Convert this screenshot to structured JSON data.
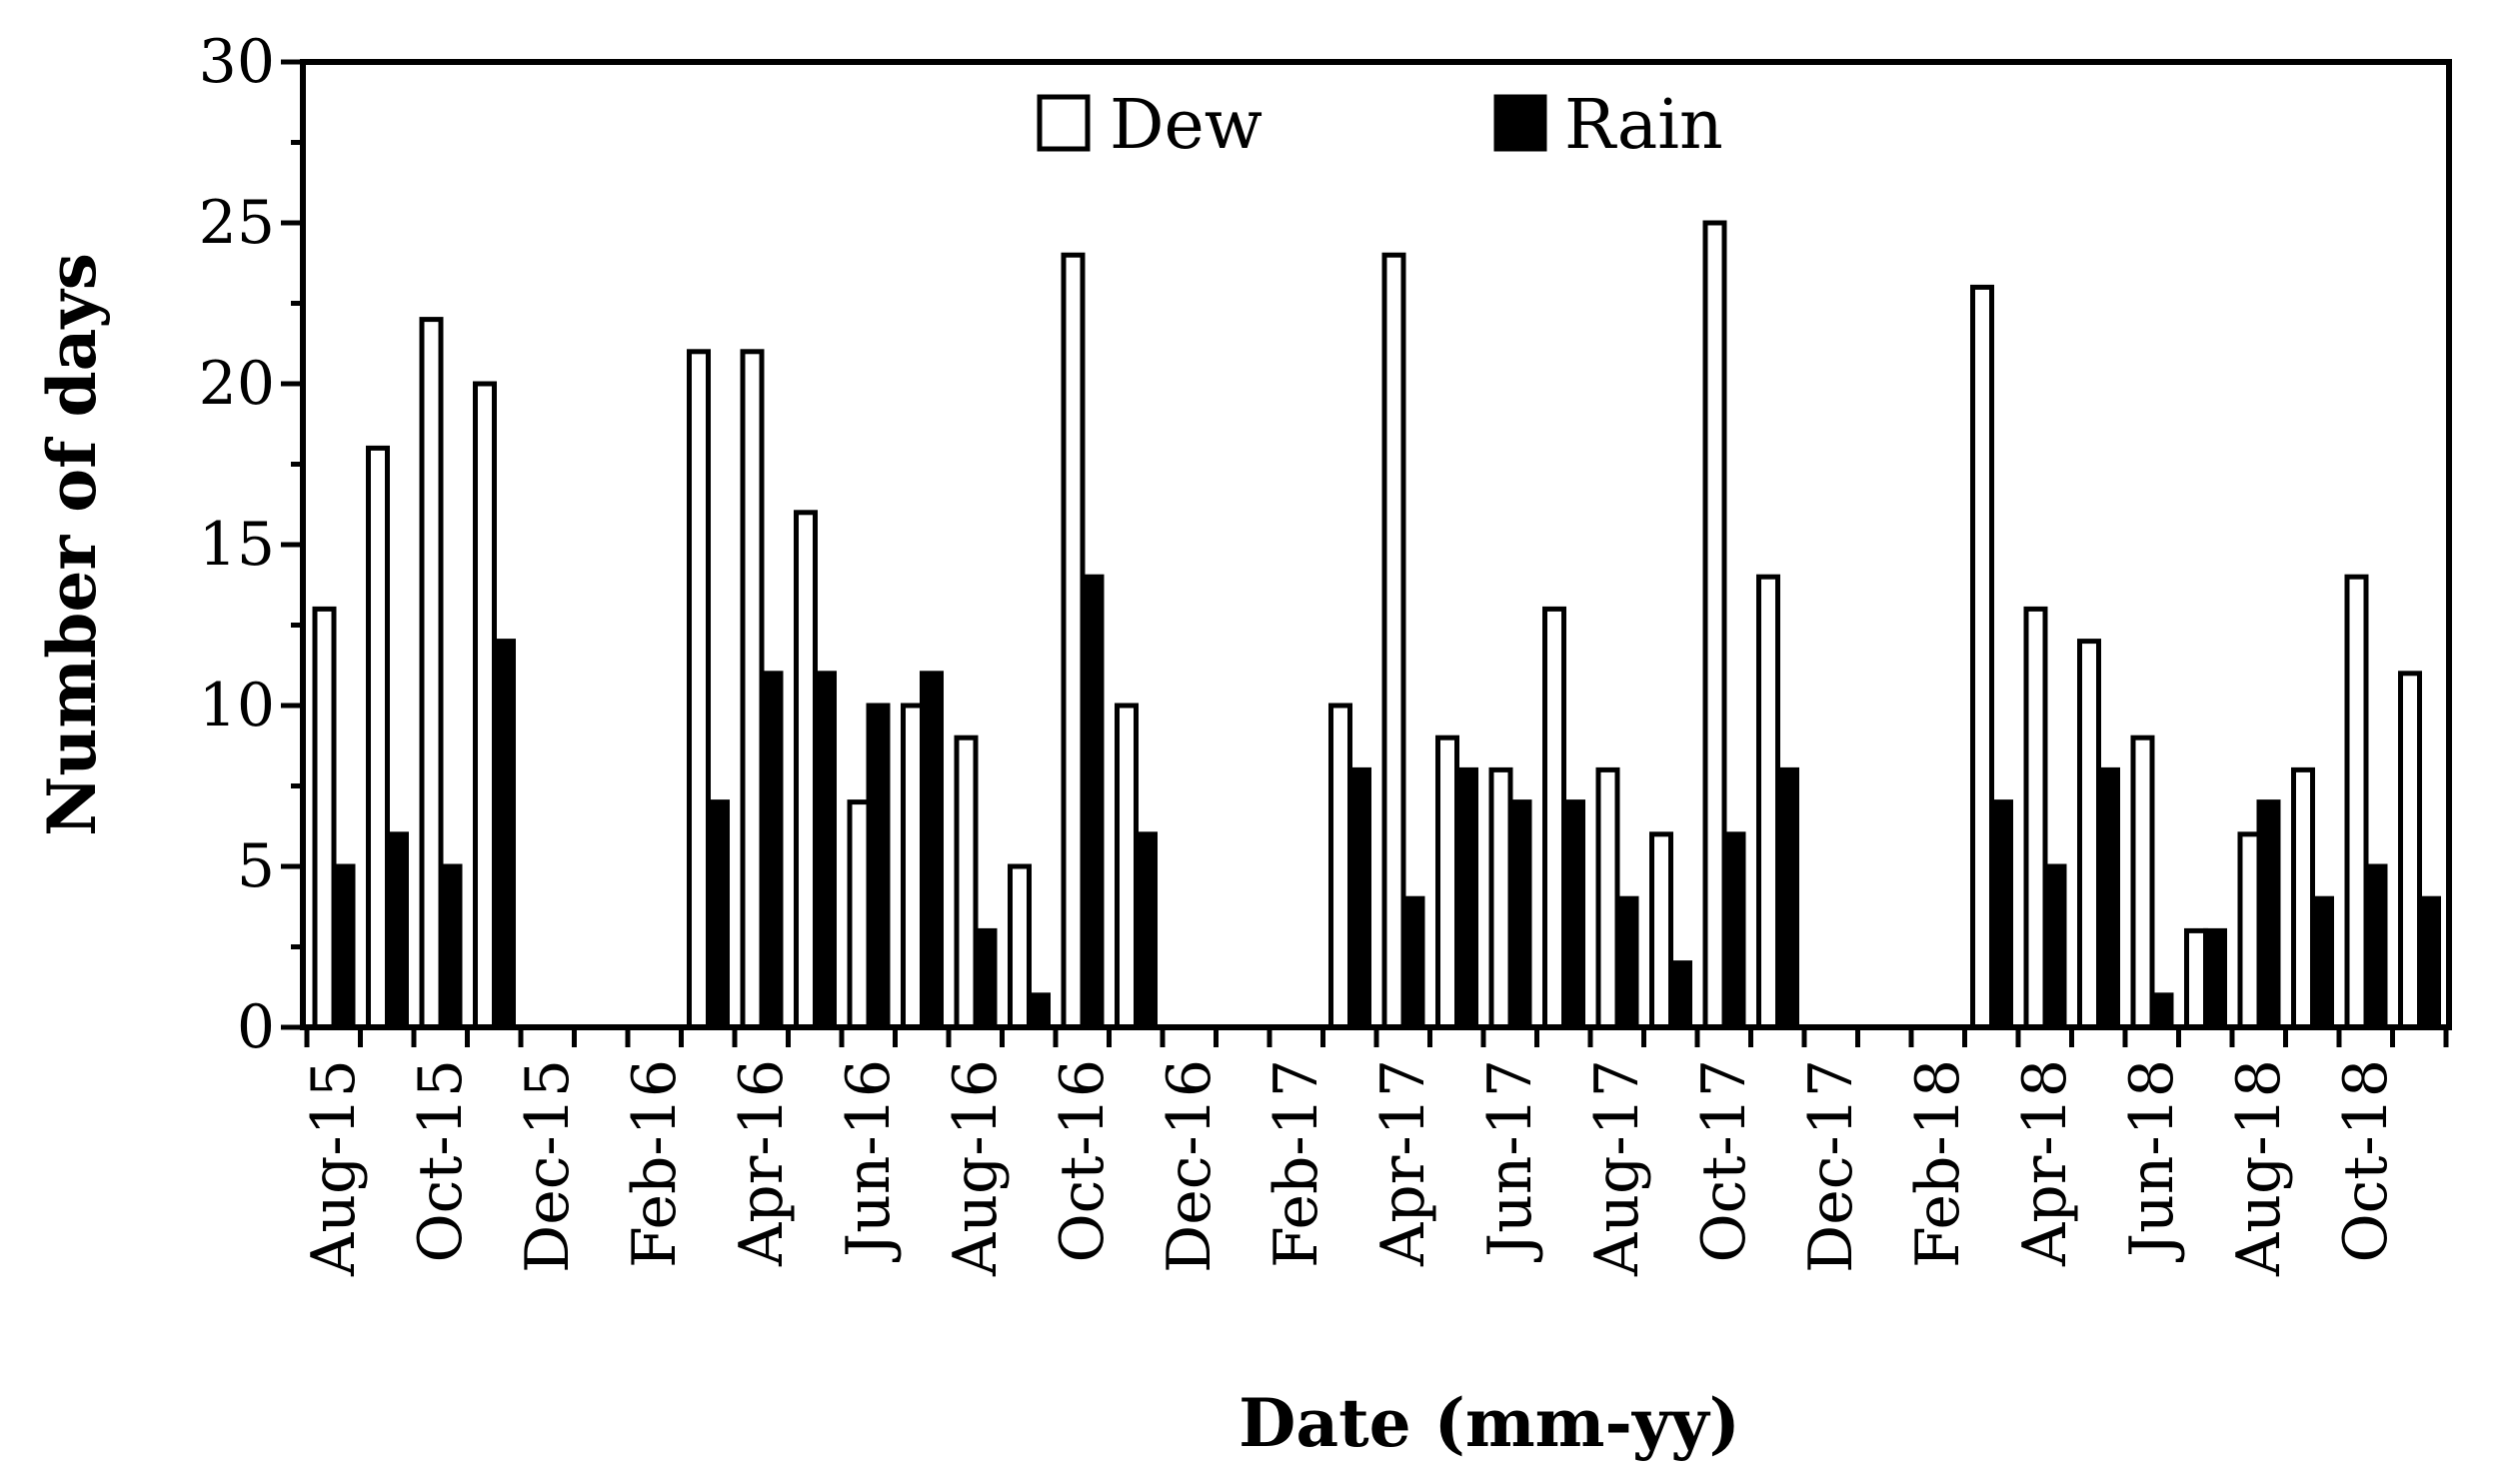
{
  "chart_data": {
    "type": "bar",
    "xlabel": "Date (mm-yy)",
    "ylabel": "Number of days",
    "ylim": [
      0,
      30
    ],
    "yticks": [
      "0",
      "5",
      "10",
      "15",
      "20",
      "25",
      "30"
    ],
    "categories": [
      "Aug-15",
      "Sep-15",
      "Oct-15",
      "Nov-15",
      "Dec-15",
      "Jan-16",
      "Feb-16",
      "Mar-16",
      "Apr-16",
      "May-16",
      "Jun-16",
      "Jul-16",
      "Aug-16",
      "Sep-16",
      "Oct-16",
      "Nov-16",
      "Dec-16",
      "Jan-17",
      "Feb-17",
      "Mar-17",
      "Apr-17",
      "May-17",
      "Jun-17",
      "Jul-17",
      "Aug-17",
      "Sep-17",
      "Oct-17",
      "Nov-17",
      "Dec-17",
      "Jan-18",
      "Feb-18",
      "Mar-18",
      "Apr-18",
      "May-18",
      "Jun-18",
      "Jul-18",
      "Aug-18",
      "Sep-18",
      "Oct-18",
      "Nov-18"
    ],
    "tick_labels": [
      "Aug-15",
      "Oct-15",
      "Dec-15",
      "Feb-16",
      "Apr-16",
      "Jun-16",
      "Aug-16",
      "Oct-16",
      "Dec-16",
      "Feb-17",
      "Apr-17",
      "Jun-17",
      "Aug-17",
      "Oct-17",
      "Dec-17",
      "Feb-18",
      "Apr-18",
      "Jun-18",
      "Aug-18",
      "Oct-18"
    ],
    "series": [
      {
        "name": "Dew",
        "fill": "#ffffff",
        "stroke": "#000000",
        "values": [
          13,
          18,
          22,
          20,
          0,
          0,
          0,
          21,
          21,
          16,
          7,
          10,
          9,
          5,
          24,
          10,
          0,
          0,
          0,
          10,
          24,
          9,
          8,
          13,
          8,
          6,
          25,
          14,
          0,
          0,
          0,
          23,
          13,
          12,
          9,
          3,
          6,
          8,
          14,
          11
        ]
      },
      {
        "name": "Rain",
        "fill": "#000000",
        "stroke": "#000000",
        "values": [
          5,
          6,
          5,
          12,
          0,
          0,
          0,
          7,
          11,
          11,
          10,
          11,
          3,
          1,
          14,
          6,
          0,
          0,
          0,
          8,
          4,
          8,
          7,
          7,
          4,
          2,
          6,
          8,
          0,
          0,
          0,
          7,
          5,
          8,
          1,
          3,
          7,
          4,
          5,
          4
        ]
      }
    ],
    "legend": [
      "Dew",
      "Rain"
    ],
    "legend_position": "top-center"
  }
}
